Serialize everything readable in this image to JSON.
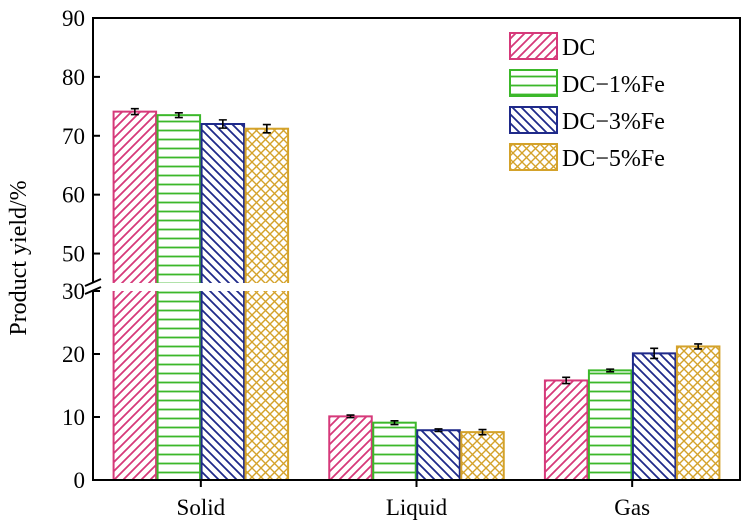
{
  "chart_data": {
    "type": "bar",
    "ylabel": "Product yield/%",
    "xlabel": "",
    "categories": [
      "Solid",
      "Liquid",
      "Gas"
    ],
    "y_ticks": [
      "0",
      "10",
      "20",
      "30",
      "50",
      "60",
      "70",
      "80",
      "90"
    ],
    "axis_break": {
      "from": 30,
      "to": 45
    },
    "ylim": [
      0,
      90
    ],
    "legend_position": "top-right",
    "grid": false,
    "series": [
      {
        "name": "DC",
        "color": "#d6397a",
        "pattern": "diagonal-up",
        "values": [
          74.1,
          10.1,
          15.8
        ],
        "errors": [
          0.5,
          0.2,
          0.5
        ]
      },
      {
        "name": "DC−1%Fe",
        "color": "#3cb82a",
        "pattern": "horizontal",
        "values": [
          73.5,
          9.1,
          17.4
        ],
        "errors": [
          0.4,
          0.3,
          0.2
        ]
      },
      {
        "name": "DC−3%Fe",
        "color": "#1f2a8a",
        "pattern": "diagonal-down",
        "values": [
          72.0,
          7.9,
          20.1
        ],
        "errors": [
          0.7,
          0.2,
          0.8
        ]
      },
      {
        "name": "DC−5%Fe",
        "color": "#d4a22a",
        "pattern": "crosshatch",
        "values": [
          71.2,
          7.6,
          21.2
        ],
        "errors": [
          0.7,
          0.4,
          0.4
        ]
      }
    ]
  }
}
